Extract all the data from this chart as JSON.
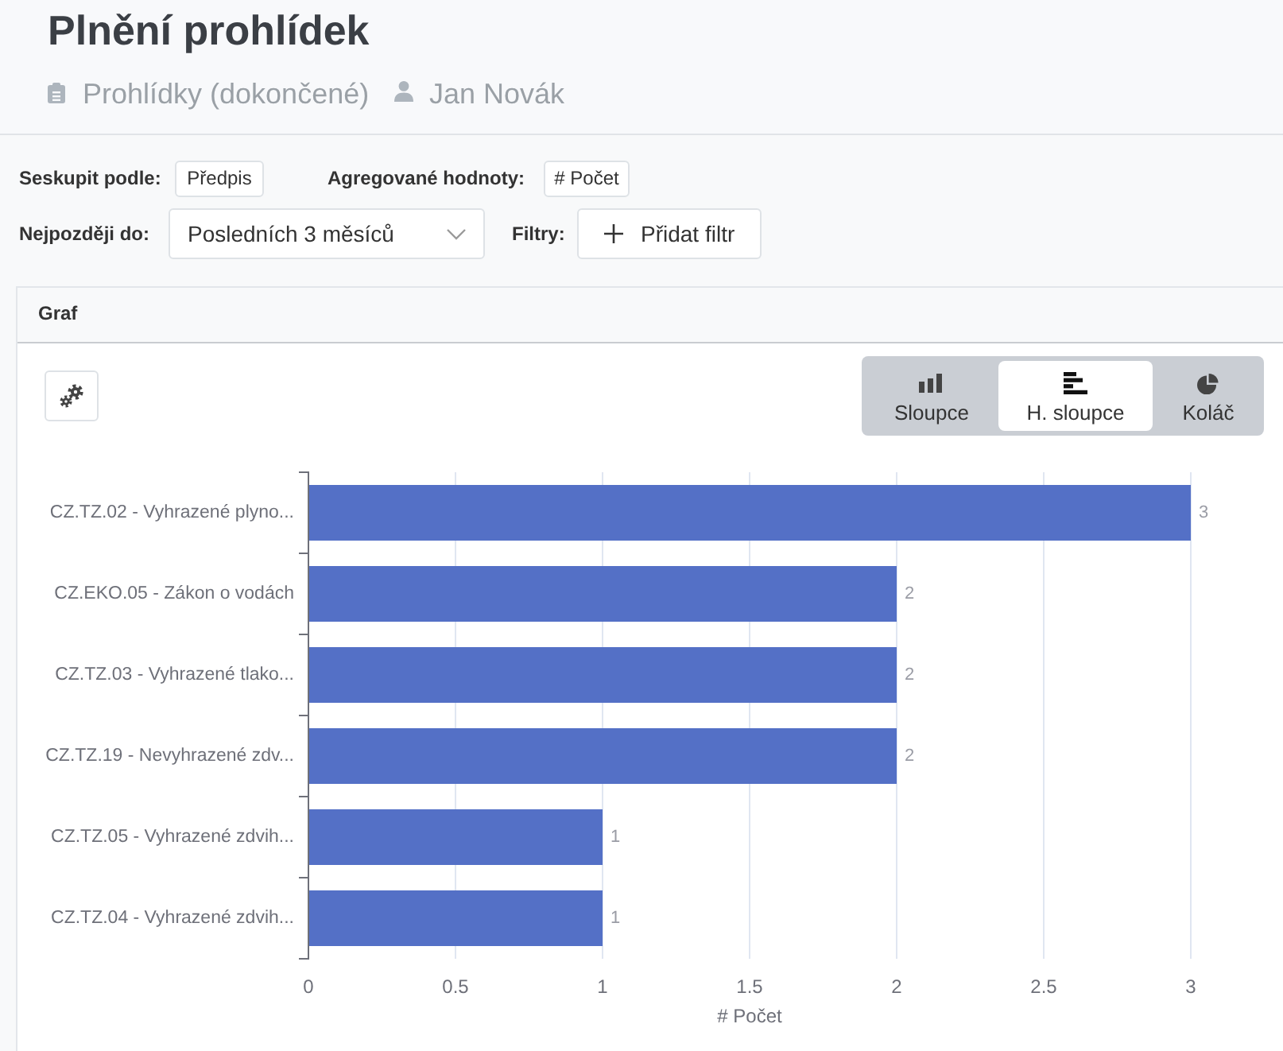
{
  "chart_data": {
    "type": "bar",
    "orientation": "horizontal",
    "title": "Plnění prohlídek",
    "subtitle": "Prohlídky (dokončené)",
    "annotations": [
      "Jan Novák",
      "Seskupit podle:",
      "Předpis",
      "Agregované hodnoty:",
      "# Počet",
      "Nejpozději do:",
      "Posledních 3 měsíců",
      "Filtry:",
      "Přidat filtr",
      "Graf",
      "Sloupce",
      "H. sloupce",
      "Koláč"
    ],
    "xlabel": "# Počet",
    "categories": [
      "CZ.TZ.02 - Vyhrazené plyno...",
      "CZ.EKO.05 - Zákon o vodách",
      "CZ.TZ.03 - Vyhrazené tlako...",
      "CZ.TZ.19 - Nevyhrazené zdv...",
      "CZ.TZ.05 - Vyhrazené zdvih...",
      "CZ.TZ.04 - Vyhrazené zdvih..."
    ],
    "values": [
      3,
      2,
      2,
      2,
      1,
      1
    ],
    "color": "#5470c6",
    "xlim": [
      0,
      3
    ],
    "xticks": [
      0,
      0.5,
      1,
      1.5,
      2,
      2.5,
      3
    ],
    "grid": "x",
    "data_labels": true
  }
}
